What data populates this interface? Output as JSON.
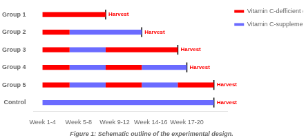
{
  "chart_data": {
    "type": "timeline",
    "caption": "Figure 1: Schematic outline of the experimental design.",
    "categories": [
      "Group 1",
      "Group 2",
      "Group 3",
      "Group 4",
      "Group 5",
      "Control"
    ],
    "series": [
      {
        "name": "Vitamin C-defficient diet",
        "color": "#FF0000",
        "values": [
          [
            [
              1,
              8
            ]
          ],
          [
            [
              1,
              4
            ]
          ],
          [
            [
              1,
              4
            ],
            [
              8,
              16
            ]
          ],
          [
            [
              1,
              4
            ],
            [
              8,
              12
            ]
          ],
          [
            [
              1,
              4
            ],
            [
              8,
              12
            ],
            [
              16,
              20
            ]
          ],
          []
        ]
      },
      {
        "name": "Vitamin C-supplemented diet",
        "color": "#6B6BFF",
        "values": [
          [],
          [
            [
              4,
              12
            ]
          ],
          [
            [
              4,
              8
            ]
          ],
          [
            [
              4,
              8
            ],
            [
              12,
              17
            ]
          ],
          [
            [
              4,
              8
            ],
            [
              12,
              16
            ]
          ],
          [
            [
              1,
              20
            ]
          ]
        ]
      }
    ],
    "annotations": [
      {
        "category": "Group 1",
        "x": 8,
        "text": "Harvest",
        "color": "#FF0000"
      },
      {
        "category": "Group 2",
        "x": 12,
        "text": "Harvest",
        "color": "#FF0000"
      },
      {
        "category": "Group 3",
        "x": 16,
        "text": "Harvest",
        "color": "#FF0000"
      },
      {
        "category": "Group 4",
        "x": 17,
        "text": "Harvest",
        "color": "#FF0000"
      },
      {
        "category": "Group 5",
        "x": 20,
        "text": "Harvest",
        "color": "#FF0000"
      },
      {
        "category": "Control",
        "x": 20,
        "text": "Harvest",
        "color": "#FF0000"
      }
    ],
    "xlim": [
      0,
      21.5
    ],
    "xticks": [
      {
        "value": 1,
        "label": "Week 1-4"
      },
      {
        "value": 5,
        "label": "Week 5-8"
      },
      {
        "value": 9,
        "label": "Week 9-12"
      },
      {
        "value": 13,
        "label": "Week 14-16"
      },
      {
        "value": 17,
        "label": "Week 17-20"
      }
    ],
    "grid": false,
    "legend": "upper right"
  }
}
